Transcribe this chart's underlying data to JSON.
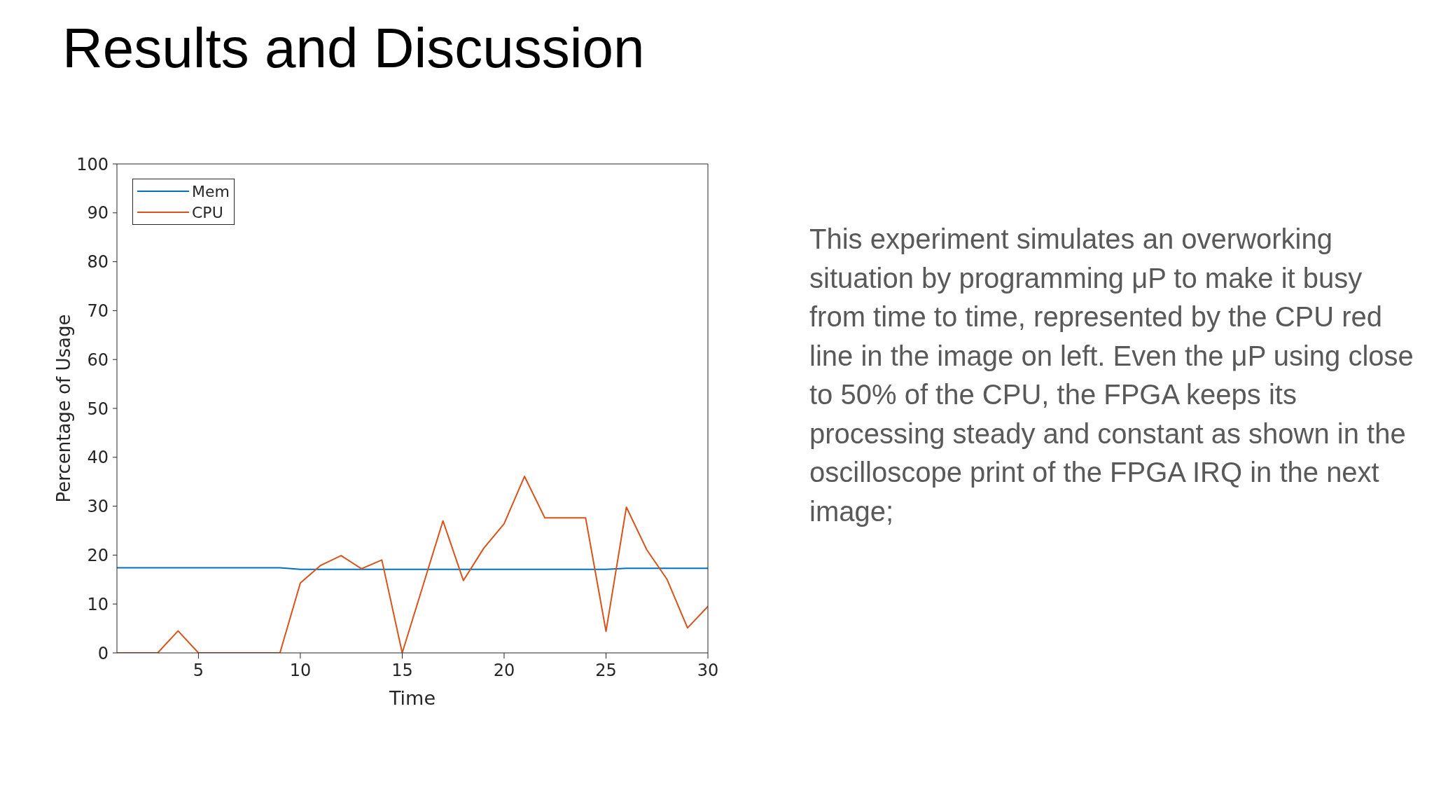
{
  "chart_data": {
    "type": "line",
    "title": "Results and Discussion",
    "xlabel": "Time",
    "ylabel": "Percentage of Usage",
    "annotations": [
      "This experiment simulates an overworking situation by programming μP to make it busy from time to time, represented by the CPU red line in the image on left. Even the μP using close to 50% of the CPU, the FPGA keeps its processing steady and constant as shown in the oscilloscope print of the FPGA IRQ in the next image;"
    ],
    "x": [
      1,
      2,
      3,
      4,
      5,
      6,
      7,
      8,
      9,
      10,
      11,
      12,
      13,
      14,
      15,
      16,
      17,
      18,
      19,
      20,
      21,
      22,
      23,
      24,
      25,
      26,
      27,
      28,
      29,
      30
    ],
    "series": [
      {
        "name": "Mem",
        "color": "#0072bd",
        "values": [
          17.4,
          17.4,
          17.4,
          17.4,
          17.4,
          17.4,
          17.4,
          17.4,
          17.4,
          17.1,
          17.1,
          17.1,
          17.1,
          17.1,
          17.1,
          17.1,
          17.1,
          17.1,
          17.1,
          17.1,
          17.1,
          17.1,
          17.1,
          17.1,
          17.1,
          17.3,
          17.3,
          17.3,
          17.3,
          17.3
        ]
      },
      {
        "name": "CPU",
        "color": "#d95319",
        "values": [
          0,
          0,
          0,
          4.5,
          0,
          0,
          0,
          0,
          0,
          14.3,
          17.9,
          19.9,
          17.2,
          19,
          0,
          13.5,
          27,
          14.8,
          21.4,
          26.4,
          36.1,
          27.6,
          27.6,
          27.6,
          4.4,
          29.8,
          21.1,
          15,
          5.1,
          9.5
        ]
      }
    ],
    "xlim": [
      1,
      30
    ],
    "xticks": [
      5,
      10,
      15,
      20,
      25,
      30
    ],
    "ylim": [
      0,
      100
    ],
    "yticks": [
      0,
      10,
      20,
      30,
      40,
      50,
      60,
      70,
      80,
      90,
      100
    ],
    "legend": "top left",
    "line_style": "solid"
  }
}
